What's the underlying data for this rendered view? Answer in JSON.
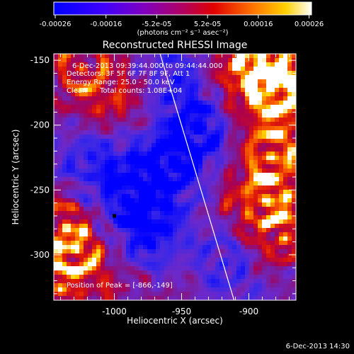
{
  "colorbar": {
    "ticks": [
      "-0.00026",
      "-0.00016",
      "-5.2e-05",
      "5.2e-05",
      "0.00016",
      "0.00026"
    ],
    "units": "(photons cm⁻² s⁻¹ asec⁻²)",
    "colors": [
      "#0000ff",
      "#6e00e6",
      "#b4009a",
      "#e00000",
      "#ff7a00",
      "#ffd000",
      "#ffffff"
    ]
  },
  "header": {
    "time_range": "6-Dec-2013 09:39:44.000 to 09:44:44.000",
    "detectors": "Detectors: 3F 5F 6F 7F 8F 9F, Att 1",
    "energy_range": "Energy Range: 25.0 - 50.0 keV",
    "clean_label": "Clean",
    "total_counts": "Total counts: 1.08E+04",
    "peak_position": "Position of Peak = [-866,-149]"
  },
  "footer": {
    "timestamp": "6-Dec-2013 14:30"
  },
  "chart_data": {
    "type": "heatmap",
    "title": "Reconstructed RHESSI Image",
    "xlabel": "Heliocentric X (arcsec)",
    "ylabel": "Heliocentric Y (arcsec)",
    "xlim": [
      -1045,
      -865
    ],
    "ylim": [
      -335,
      -145
    ],
    "x_ticks": [
      -1000,
      -950,
      -900
    ],
    "y_ticks": [
      -150,
      -200,
      -250,
      -300
    ],
    "x_tick_labels": [
      "-1000",
      "-950",
      "-900"
    ],
    "y_tick_labels": [
      "-150",
      "-200",
      "-250",
      "-300"
    ],
    "value_range": [
      -0.00026,
      0.00026
    ],
    "peak": [
      -866,
      -149
    ],
    "limb_line": [
      [
        -966,
        -145
      ],
      [
        -911,
        -335
      ]
    ],
    "marker": [
      -1000,
      -270
    ]
  }
}
